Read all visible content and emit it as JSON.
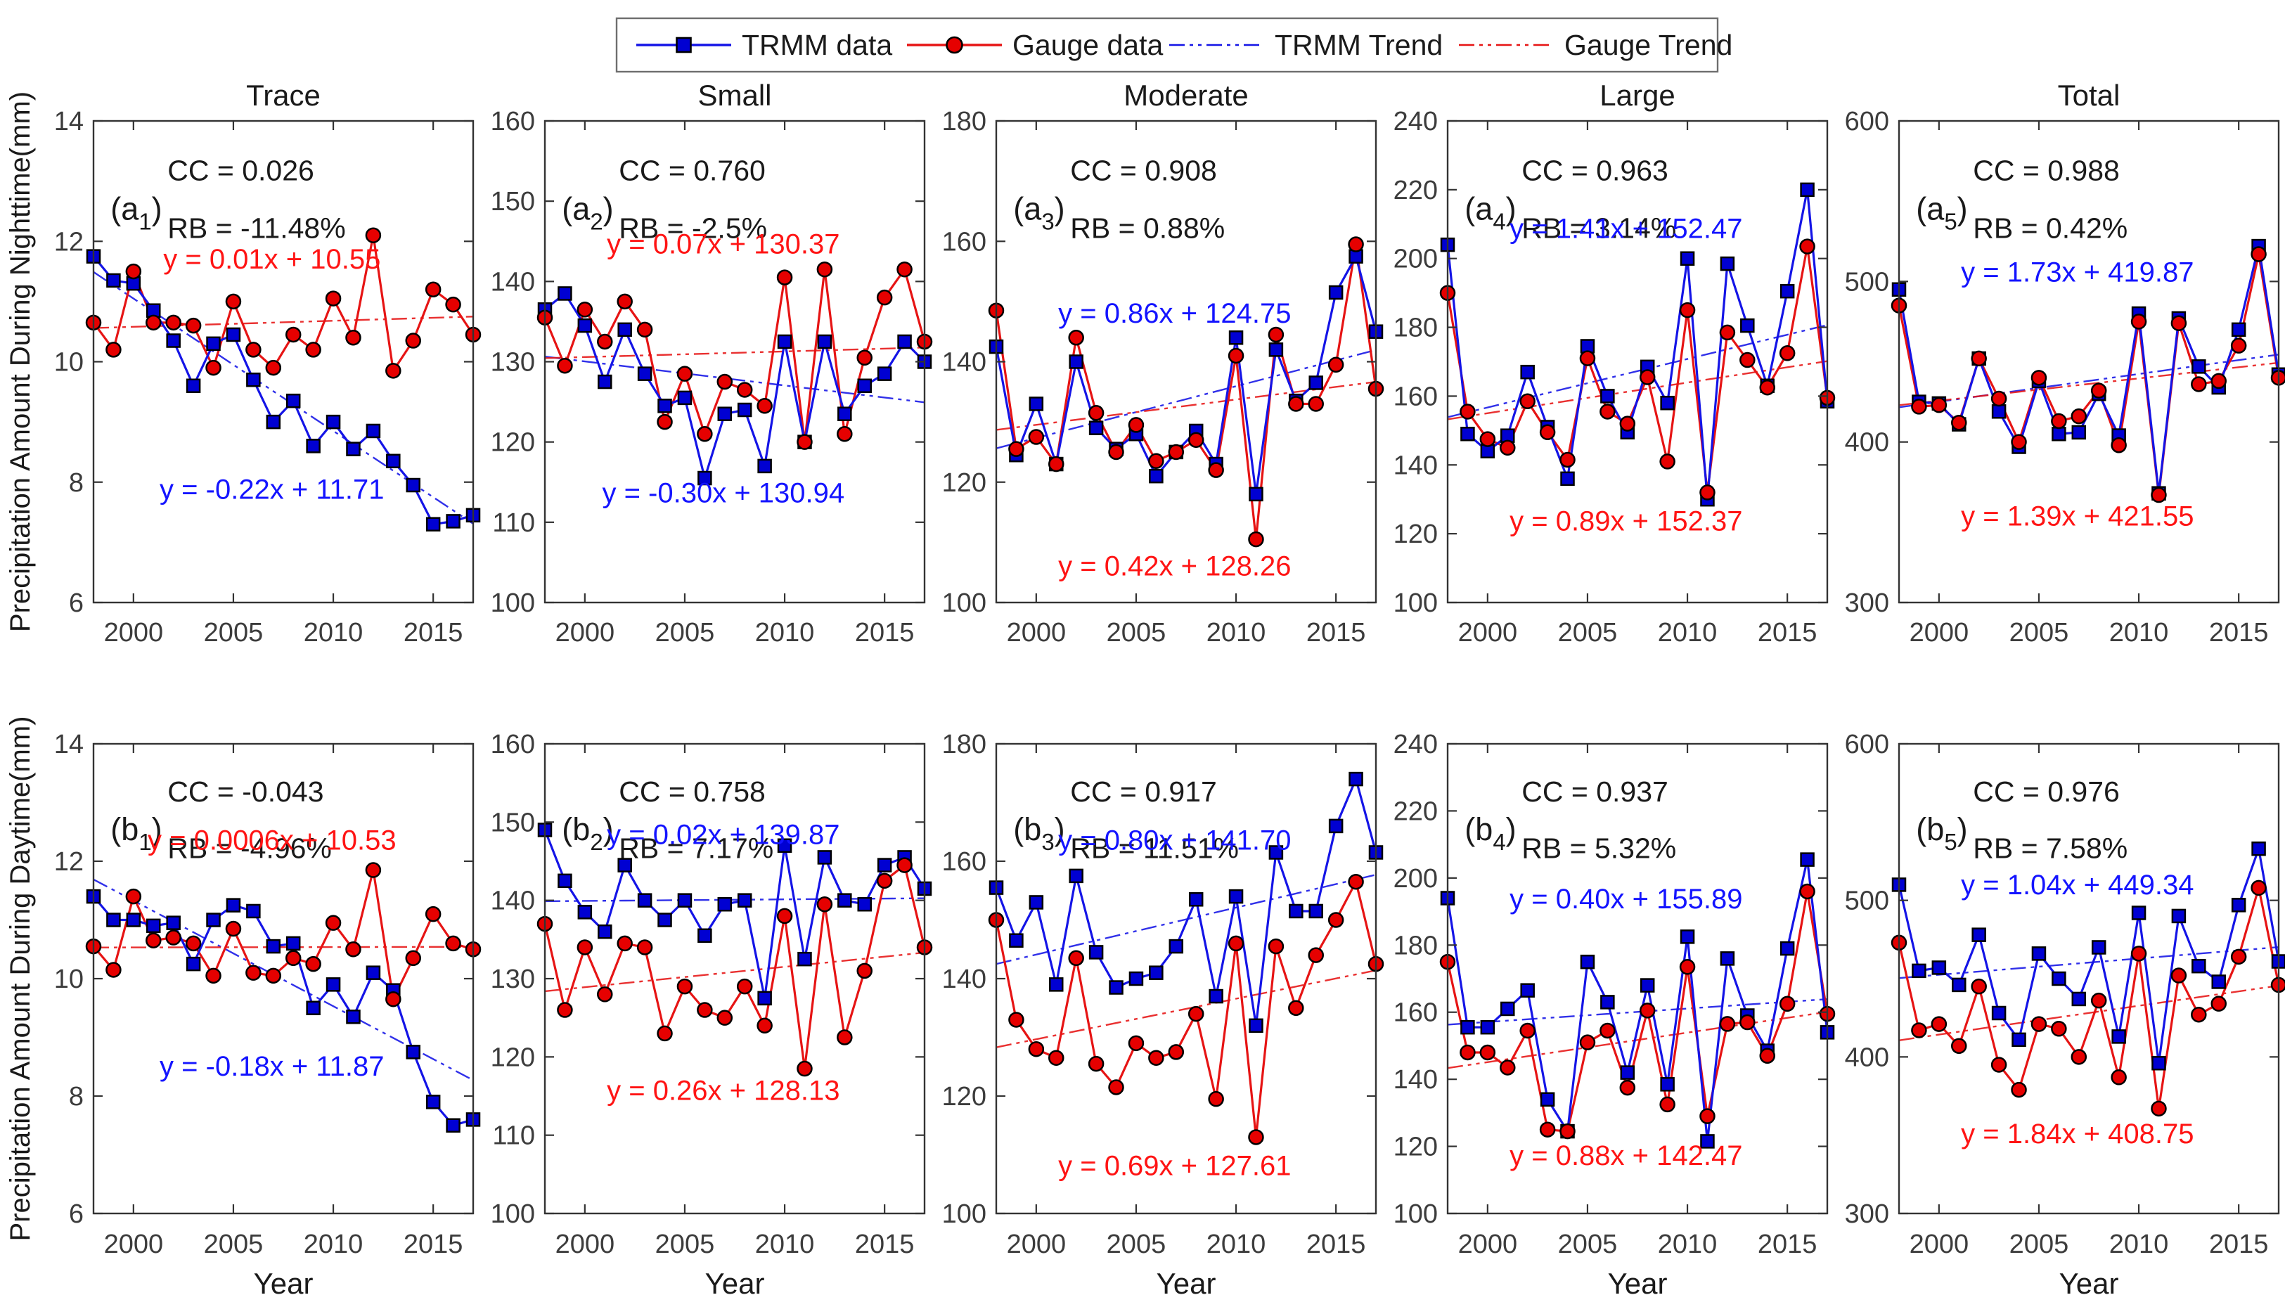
{
  "ylabel_night": "Precipitation Amount During Nighttime(mm)",
  "ylabel_day": "Precipitation Amount During Daytime(mm)",
  "xlabel": "Year",
  "xticks": [
    2000,
    2005,
    2010,
    2015
  ],
  "years": [
    1998,
    1999,
    2000,
    2001,
    2002,
    2003,
    2004,
    2005,
    2006,
    2007,
    2008,
    2009,
    2010,
    2011,
    2012,
    2013,
    2014,
    2015,
    2016,
    2017
  ],
  "colors": {
    "trmm_line": "#1414e6",
    "trmm_marker": "#0000d2",
    "gauge_line": "#e61414",
    "gauge_marker": "#e60000",
    "marker_edge": "#000000",
    "axis": "#333333",
    "tick_text": "#3c3c3c",
    "annot_text": "#1a1a1a",
    "trmm_text": "#1414ff",
    "gauge_text": "#ff1414"
  },
  "legend": {
    "position": "top-center",
    "items": [
      {
        "label": "TRMM data",
        "color": "#1414e6",
        "marker": "square",
        "line": "solid"
      },
      {
        "label": "Gauge data",
        "color": "#e61414",
        "marker": "circle",
        "line": "solid"
      },
      {
        "label": "TRMM Trend",
        "color": "#1414e6",
        "marker": "none",
        "line": "dashdot"
      },
      {
        "label": "Gauge Trend",
        "color": "#e61414",
        "marker": "none",
        "line": "dashdot"
      }
    ]
  },
  "chart_data": [
    {
      "id": "a1",
      "type": "line",
      "row": 0,
      "col": 0,
      "title": "Trace",
      "label_pre": "(a",
      "label_sub": "1",
      "label_post": ")",
      "cc_text": "CC = 0.026",
      "rb_text": "RB = -11.48%",
      "trmm_eq": "y = -0.22x + 11.71",
      "gauge_eq": "y = 0.01x + 10.55",
      "trmm_trend_slope": -0.22,
      "trmm_trend_intercept": 11.71,
      "gauge_trend_slope": 0.01,
      "gauge_trend_intercept": 10.55,
      "ylim": [
        6,
        14
      ],
      "yticks": [
        6,
        8,
        10,
        12,
        14
      ],
      "eq_y": {
        "trmm": 7.72,
        "gauge": 11.55
      },
      "trmm": [
        11.75,
        11.35,
        11.3,
        10.85,
        10.35,
        9.6,
        10.3,
        10.45,
        9.7,
        9.0,
        9.35,
        8.6,
        9.0,
        8.55,
        8.85,
        8.35,
        7.95,
        7.3,
        7.35,
        7.45
      ],
      "gauge": [
        10.65,
        10.2,
        11.5,
        10.65,
        10.65,
        10.6,
        9.9,
        11.0,
        10.2,
        9.9,
        10.45,
        10.2,
        11.05,
        10.4,
        12.1,
        9.85,
        10.35,
        11.2,
        10.95,
        10.45
      ]
    },
    {
      "id": "a2",
      "type": "line",
      "row": 0,
      "col": 1,
      "title": "Small",
      "label_pre": "(a",
      "label_sub": "2",
      "label_post": ")",
      "cc_text": "CC = 0.760",
      "rb_text": "RB = -2.5%",
      "trmm_eq": "y = -0.30x + 130.94",
      "gauge_eq": "y = 0.07x + 130.37",
      "trmm_trend_slope": -0.3,
      "trmm_trend_intercept": 130.94,
      "gauge_trend_slope": 0.07,
      "gauge_trend_intercept": 130.37,
      "ylim": [
        100,
        160
      ],
      "yticks": [
        100,
        110,
        120,
        130,
        140,
        150,
        160
      ],
      "eq_y": {
        "trmm": 112.5,
        "gauge": 143.5
      },
      "trmm": [
        136.5,
        138.5,
        134.5,
        127.5,
        134,
        128.5,
        124.5,
        125.5,
        115.5,
        123.5,
        124,
        117,
        132.5,
        120,
        132.5,
        123.5,
        127,
        128.5,
        132.5,
        130
      ],
      "gauge": [
        135.5,
        129.5,
        136.5,
        132.5,
        137.5,
        134,
        122.5,
        128.5,
        121,
        127.5,
        126.5,
        124.5,
        140.5,
        120,
        141.5,
        121,
        130.5,
        138,
        141.5,
        132.5
      ]
    },
    {
      "id": "a3",
      "type": "line",
      "row": 0,
      "col": 2,
      "title": "Moderate",
      "label_pre": "(a",
      "label_sub": "3",
      "label_post": ")",
      "cc_text": "CC = 0.908",
      "rb_text": "RB = 0.88%",
      "trmm_eq": "y = 0.86x + 124.75",
      "gauge_eq": "y = 0.42x + 128.26",
      "trmm_trend_slope": 0.86,
      "trmm_trend_intercept": 124.75,
      "gauge_trend_slope": 0.42,
      "gauge_trend_intercept": 128.26,
      "ylim": [
        100,
        180
      ],
      "yticks": [
        100,
        120,
        140,
        160,
        180
      ],
      "eq_y": {
        "trmm": 146.5,
        "gauge": 104.5
      },
      "trmm": [
        142.5,
        124.5,
        133,
        123,
        140,
        129,
        125.5,
        128,
        121,
        125,
        128.5,
        123,
        144,
        118,
        142,
        133.5,
        136.5,
        151.5,
        157.5,
        145
      ],
      "gauge": [
        148.5,
        125.5,
        127.5,
        123,
        144,
        131.5,
        125,
        129.5,
        123.5,
        125,
        127,
        122,
        141,
        110.5,
        144.5,
        133,
        133,
        139.5,
        159.5,
        135.5
      ]
    },
    {
      "id": "a4",
      "type": "line",
      "row": 0,
      "col": 3,
      "title": "Large",
      "label_pre": "(a",
      "label_sub": "4",
      "label_post": ")",
      "cc_text": "CC = 0.963",
      "rb_text": "RB = 3.14%",
      "trmm_eq": "y = 1.41x + 152.47",
      "gauge_eq": "y = 0.89x + 152.37",
      "trmm_trend_slope": 1.41,
      "trmm_trend_intercept": 152.47,
      "gauge_trend_slope": 0.89,
      "gauge_trend_intercept": 152.37,
      "ylim": [
        100,
        240
      ],
      "yticks": [
        100,
        120,
        140,
        160,
        180,
        200,
        220,
        240
      ],
      "eq_y": {
        "trmm": 206,
        "gauge": 121
      },
      "trmm": [
        204,
        149,
        144,
        148.5,
        167,
        151,
        136,
        174.5,
        160,
        149.5,
        168.5,
        158,
        200,
        130,
        198.5,
        180.5,
        163,
        190.5,
        220,
        158.5
      ],
      "gauge": [
        190,
        155.5,
        147.5,
        145,
        158.5,
        149.5,
        141.5,
        171,
        155.5,
        152,
        165.5,
        141,
        185,
        132,
        178.5,
        170.5,
        162.5,
        172.5,
        203.5,
        159.5
      ]
    },
    {
      "id": "a5",
      "type": "line",
      "row": 0,
      "col": 4,
      "title": "Total",
      "label_pre": "(a",
      "label_sub": "5",
      "label_post": ")",
      "cc_text": "CC = 0.988",
      "rb_text": "RB = 0.42%",
      "trmm_eq": "y = 1.73x + 419.87",
      "gauge_eq": "y = 1.39x + 421.55",
      "trmm_trend_slope": 1.73,
      "trmm_trend_intercept": 419.87,
      "gauge_trend_slope": 1.39,
      "gauge_trend_intercept": 421.55,
      "ylim": [
        300,
        600
      ],
      "yticks": [
        300,
        400,
        500,
        600
      ],
      "eq_y": {
        "trmm": 500,
        "gauge": 348
      },
      "trmm": [
        495,
        425,
        424,
        411,
        452,
        419,
        397,
        438,
        405,
        406,
        430,
        404,
        480,
        368,
        477,
        447,
        434,
        470,
        522,
        442
      ],
      "gauge": [
        485,
        422,
        423,
        412,
        452,
        427,
        400,
        440,
        413,
        416,
        432,
        398,
        475,
        367,
        474,
        436,
        438,
        460,
        517,
        440
      ]
    },
    {
      "id": "b1",
      "type": "line",
      "row": 1,
      "col": 0,
      "title": "",
      "label_pre": "(b",
      "label_sub": "1",
      "label_post": ")",
      "cc_text": "CC = -0.043",
      "rb_text": "RB = -4.96%",
      "trmm_eq": "y = -0.18x + 11.87",
      "gauge_eq": "y = 0.0006x + 10.53",
      "trmm_trend_slope": -0.18,
      "trmm_trend_intercept": 11.87,
      "gauge_trend_slope": 0.0006,
      "gauge_trend_intercept": 10.53,
      "ylim": [
        6,
        14
      ],
      "yticks": [
        6,
        8,
        10,
        12,
        14
      ],
      "eq_y": {
        "trmm": 8.35,
        "gauge": 12.2
      },
      "trmm": [
        11.4,
        11.0,
        11.0,
        10.9,
        10.95,
        10.25,
        11.0,
        11.25,
        11.15,
        10.55,
        10.6,
        9.5,
        9.9,
        9.35,
        10.1,
        9.8,
        8.75,
        7.9,
        7.5,
        7.6
      ],
      "gauge": [
        10.55,
        10.15,
        11.4,
        10.65,
        10.7,
        10.6,
        10.05,
        10.85,
        10.1,
        10.05,
        10.35,
        10.25,
        10.95,
        10.5,
        11.85,
        9.65,
        10.35,
        11.1,
        10.6,
        10.5
      ]
    },
    {
      "id": "b2",
      "type": "line",
      "row": 1,
      "col": 1,
      "title": "",
      "label_pre": "(b",
      "label_sub": "2",
      "label_post": ")",
      "cc_text": "CC = 0.758",
      "rb_text": "RB = 7.17%",
      "trmm_eq": "y = 0.02x + 139.87",
      "gauge_eq": "y = 0.26x + 128.13",
      "trmm_trend_slope": 0.02,
      "trmm_trend_intercept": 139.87,
      "gauge_trend_slope": 0.26,
      "gauge_trend_intercept": 128.13,
      "ylim": [
        100,
        160
      ],
      "yticks": [
        100,
        110,
        120,
        130,
        140,
        150,
        160
      ],
      "eq_y": {
        "trmm": 147.2,
        "gauge": 114.5
      },
      "trmm": [
        149,
        142.5,
        138.5,
        136,
        144.5,
        140,
        137.5,
        140,
        135.5,
        139.5,
        140,
        127.5,
        147,
        132.5,
        145.5,
        140,
        139.5,
        144.5,
        145.5,
        141.5
      ],
      "gauge": [
        137,
        126,
        134,
        128,
        134.5,
        134,
        123,
        129,
        126,
        125,
        129,
        124,
        138,
        118.5,
        139.5,
        122.5,
        131,
        142.5,
        144.5,
        134
      ]
    },
    {
      "id": "b3",
      "type": "line",
      "row": 1,
      "col": 2,
      "title": "",
      "label_pre": "(b",
      "label_sub": "3",
      "label_post": ")",
      "cc_text": "CC = 0.917",
      "rb_text": "RB = 11.51%",
      "trmm_eq": "y = 0.80x + 141.70",
      "gauge_eq": "y = 0.69x + 127.61",
      "trmm_trend_slope": 0.8,
      "trmm_trend_intercept": 141.7,
      "gauge_trend_slope": 0.69,
      "gauge_trend_intercept": 127.61,
      "ylim": [
        100,
        180
      ],
      "yticks": [
        100,
        120,
        140,
        160,
        180
      ],
      "eq_y": {
        "trmm": 162,
        "gauge": 106.5
      },
      "trmm": [
        155.5,
        146.5,
        153,
        139,
        157.5,
        144.5,
        138.5,
        140,
        141,
        145.5,
        153.5,
        137,
        154,
        132,
        161.5,
        151.5,
        151.5,
        166,
        174,
        161.5
      ],
      "gauge": [
        150,
        133,
        128,
        126.5,
        143.5,
        125.5,
        121.5,
        129,
        126.5,
        127.5,
        134,
        119.5,
        146,
        113,
        145.5,
        135,
        144,
        150,
        156.5,
        142.5
      ]
    },
    {
      "id": "b4",
      "type": "line",
      "row": 1,
      "col": 3,
      "title": "",
      "label_pre": "(b",
      "label_sub": "4",
      "label_post": ")",
      "cc_text": "CC = 0.937",
      "rb_text": "RB = 5.32%",
      "trmm_eq": "y = 0.40x + 155.89",
      "gauge_eq": "y = 0.88x + 142.47",
      "trmm_trend_slope": 0.4,
      "trmm_trend_intercept": 155.89,
      "gauge_trend_slope": 0.88,
      "gauge_trend_intercept": 142.47,
      "ylim": [
        100,
        240
      ],
      "yticks": [
        100,
        120,
        140,
        160,
        180,
        200,
        220,
        240
      ],
      "eq_y": {
        "trmm": 191,
        "gauge": 114.5
      },
      "trmm": [
        194,
        155.5,
        155.5,
        161,
        166.5,
        134,
        124.5,
        175,
        163,
        142,
        168,
        138.5,
        182.5,
        121.5,
        176,
        159,
        148.5,
        179,
        205.5,
        154
      ],
      "gauge": [
        175,
        148,
        148,
        143.5,
        154.5,
        125,
        124.5,
        151,
        154.5,
        137.5,
        160.5,
        132.5,
        173.5,
        129,
        156.5,
        157,
        147,
        162.5,
        196,
        159.5
      ]
    },
    {
      "id": "b5",
      "type": "line",
      "row": 1,
      "col": 4,
      "title": "",
      "label_pre": "(b",
      "label_sub": "5",
      "label_post": ")",
      "cc_text": "CC = 0.976",
      "rb_text": "RB = 7.58%",
      "trmm_eq": "y = 1.04x + 449.34",
      "gauge_eq": "y = 1.84x + 408.75",
      "trmm_trend_slope": 1.04,
      "trmm_trend_intercept": 449.34,
      "gauge_trend_slope": 1.84,
      "gauge_trend_intercept": 408.75,
      "ylim": [
        300,
        600
      ],
      "yticks": [
        300,
        400,
        500,
        600
      ],
      "eq_y": {
        "trmm": 504,
        "gauge": 345
      },
      "trmm": [
        510,
        455,
        457,
        446,
        478,
        428,
        411,
        466,
        450,
        437,
        470,
        413,
        492,
        396,
        490,
        458,
        448,
        497,
        533,
        461
      ],
      "gauge": [
        473,
        417,
        421,
        407,
        445,
        395,
        379,
        421,
        418,
        400,
        436,
        387,
        466,
        367,
        452,
        427,
        434,
        464,
        508,
        446
      ]
    }
  ]
}
